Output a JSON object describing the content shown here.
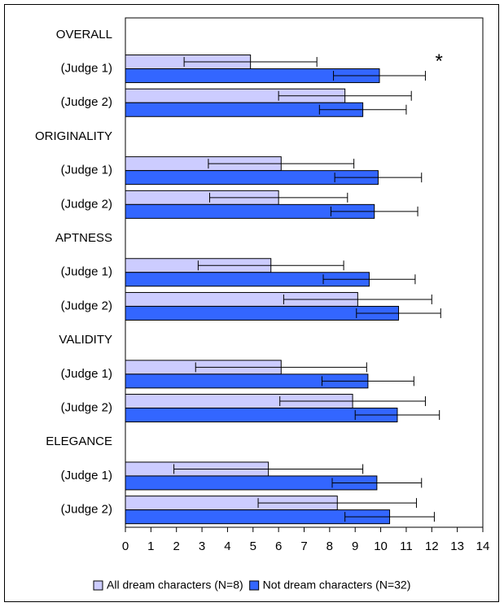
{
  "chart_data": {
    "type": "bar",
    "orientation": "horizontal",
    "title": "",
    "xlabel": "",
    "ylabel": "",
    "xlim": [
      0,
      14
    ],
    "xticks": [
      "0",
      "1",
      "2",
      "3",
      "4",
      "5",
      "6",
      "7",
      "8",
      "9",
      "10",
      "11",
      "12",
      "13",
      "14"
    ],
    "grid": false,
    "legend_position": "bottom",
    "group_headers": [
      "OVERALL",
      "ORIGINALITY",
      "APTNESS",
      "VALIDITY",
      "ELEGANCE"
    ],
    "categories": [
      "(Judge 1)",
      "(Judge 2)",
      "(Judge 1)",
      "(Judge 2)",
      "(Judge 1)",
      "(Judge 2)",
      "(Judge 1)",
      "(Judge 2)",
      "(Judge 1)",
      "(Judge 2)"
    ],
    "series": [
      {
        "name": "All dream characters (N=8)",
        "color": "#ccccff",
        "values": [
          4.9,
          8.6,
          6.1,
          6.0,
          5.7,
          9.1,
          6.1,
          8.9,
          5.6,
          8.3
        ],
        "error": [
          2.6,
          2.6,
          2.85,
          2.7,
          2.85,
          2.9,
          3.35,
          2.85,
          3.7,
          3.1
        ]
      },
      {
        "name": "Not dream characters (N=32)",
        "color": "#3366ff",
        "values": [
          9.95,
          9.3,
          9.9,
          9.75,
          9.55,
          10.7,
          9.5,
          10.65,
          9.85,
          10.35
        ],
        "error": [
          1.8,
          1.7,
          1.7,
          1.7,
          1.8,
          1.65,
          1.8,
          1.65,
          1.75,
          1.75
        ]
      }
    ],
    "annotations": [
      {
        "text": "*",
        "category_index": 0
      }
    ]
  }
}
